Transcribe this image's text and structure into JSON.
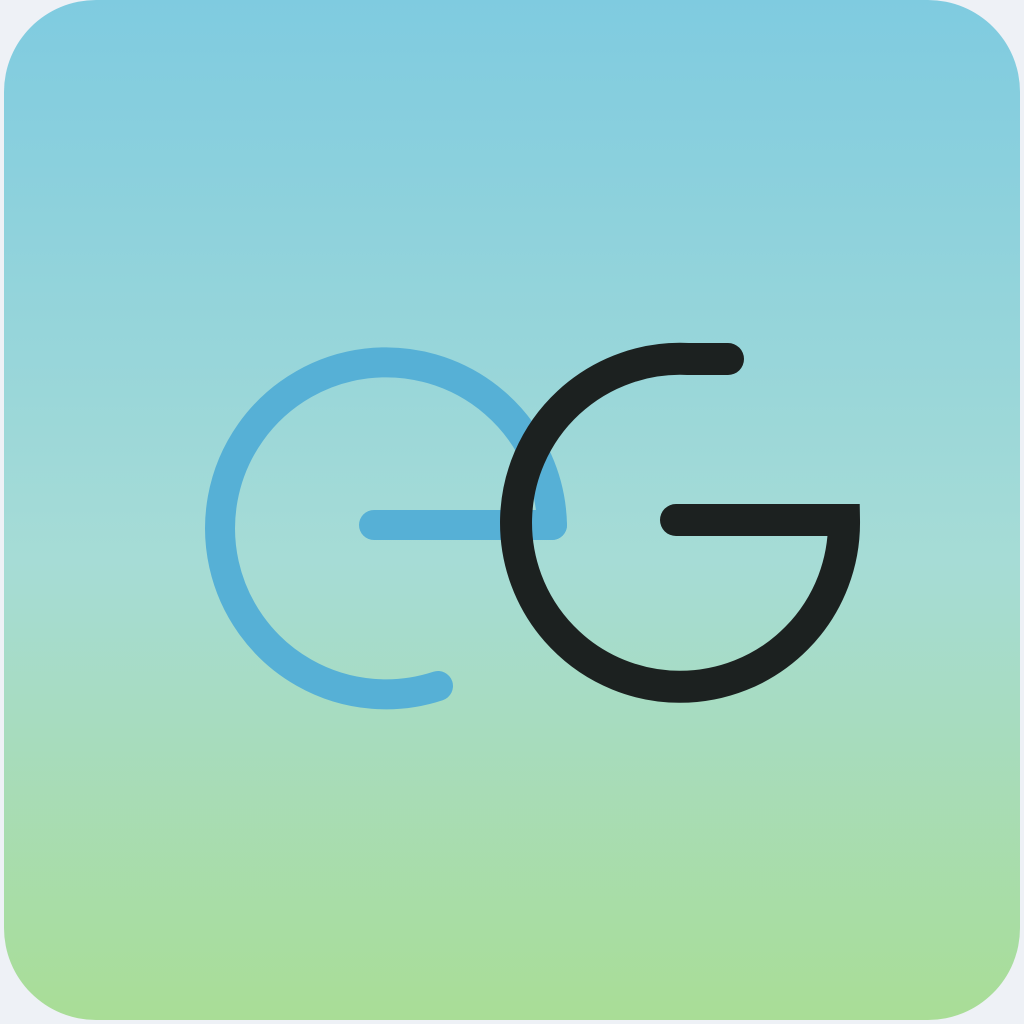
{
  "icon": {
    "name": "eG app icon",
    "logo_text": "eG",
    "colors": {
      "gradient_top": "#7fcbe0",
      "gradient_mid": "#a6dcd6",
      "gradient_bottom": "#a9dd96",
      "letter_e": "#56b0d6",
      "letter_g": "#1c2120",
      "page_background": "#eef1f6"
    }
  }
}
